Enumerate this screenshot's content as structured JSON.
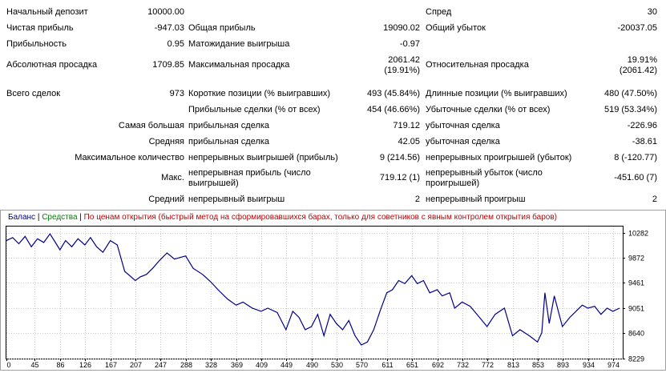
{
  "report": {
    "initial_deposit": {
      "label": "Начальный депозит",
      "value": "10000.00"
    },
    "spread": {
      "label": "Спред",
      "value": "30"
    },
    "net_profit": {
      "label": "Чистая прибыль",
      "value": "-947.03"
    },
    "gross_profit": {
      "label": "Общая прибыль",
      "value": "19090.02"
    },
    "gross_loss": {
      "label": "Общий убыток",
      "value": "-20037.05"
    },
    "profit_factor": {
      "label": "Прибыльность",
      "value": "0.95"
    },
    "expected_payoff": {
      "label": "Матожидание выигрыша",
      "value": "-0.97"
    },
    "abs_drawdown": {
      "label": "Абсолютная просадка",
      "value": "1709.85"
    },
    "max_drawdown": {
      "label": "Максимальная просадка",
      "value": "2061.42",
      "value2": "(19.91%)"
    },
    "rel_drawdown": {
      "label": "Относительная просадка",
      "value": "19.91%",
      "value2": "(2061.42)"
    },
    "total_trades": {
      "label": "Всего сделок",
      "value": "973"
    },
    "short_positions": {
      "label": "Короткие позиции (% выигравших)",
      "value": "493 (45.84%)"
    },
    "long_positions": {
      "label": "Длинные позиции (% выигравших)",
      "value": "480 (47.50%)"
    },
    "profit_trades": {
      "label": "Прибыльные сделки (% от всех)",
      "value": "454 (46.66%)"
    },
    "loss_trades": {
      "label": "Убыточные сделки (% от всех)",
      "value": "519 (53.34%)"
    },
    "largest": {
      "label": "Самая большая",
      "profit_label": "прибыльная сделка",
      "profit_value": "719.12",
      "loss_label": "убыточная сделка",
      "loss_value": "-226.96"
    },
    "average": {
      "label": "Средняя",
      "profit_label": "прибыльная сделка",
      "profit_value": "42.05",
      "loss_label": "убыточная сделка",
      "loss_value": "-38.61"
    },
    "max_consecutive": {
      "label": "Максимальное количество",
      "wins_label": "непрерывных выигрышей (прибыль)",
      "wins_value": "9 (214.56)",
      "losses_label": "непрерывных проигрышей (убыток)",
      "losses_value": "8 (-120.77)"
    },
    "max_consecutive_amount": {
      "label": "Макс.",
      "profit_label": "непрерывная прибыль (число выигрышей)",
      "profit_value": "719.12 (1)",
      "loss_label": "непрерывный убыток (число проигрышей)",
      "loss_value": "-451.60 (7)"
    },
    "average_consecutive": {
      "label": "Средний",
      "wins_label": "непрерывный выигрыш",
      "wins_value": "2",
      "losses_label": "непрерывный проигрыш",
      "losses_value": "2"
    }
  },
  "legend": {
    "balance": "Баланс",
    "sep1": " | ",
    "equity": "Средства",
    "sep2": " | ",
    "model": "По ценам открытия (быстрый метод на сформировавшихся барах, только для советников с явным контролем открытия баров)",
    "colors": {
      "balance": "#00008b",
      "equity": "#008000",
      "model": "#c00000"
    }
  },
  "chart_data": {
    "type": "line",
    "title": "",
    "xlabel": "",
    "ylabel": "",
    "x_ticks": [
      0,
      45,
      86,
      126,
      167,
      207,
      247,
      288,
      328,
      369,
      409,
      449,
      490,
      530,
      570,
      611,
      651,
      692,
      732,
      772,
      813,
      853,
      893,
      934,
      974
    ],
    "y_ticks": [
      10282,
      9872,
      9461,
      9051,
      8640,
      8229
    ],
    "xlim": [
      0,
      990
    ],
    "ylim": [
      8229,
      10380
    ],
    "grid": true,
    "series": [
      {
        "color": "#00008b",
        "x": [
          0,
          10,
          20,
          30,
          40,
          50,
          60,
          70,
          80,
          86,
          95,
          105,
          115,
          126,
          135,
          145,
          155,
          167,
          178,
          190,
          207,
          215,
          225,
          235,
          247,
          258,
          270,
          280,
          288,
          300,
          315,
          328,
          340,
          355,
          369,
          380,
          395,
          409,
          420,
          435,
          449,
          460,
          470,
          480,
          490,
          500,
          510,
          520,
          530,
          540,
          550,
          560,
          570,
          580,
          590,
          600,
          611,
          620,
          630,
          640,
          651,
          660,
          670,
          680,
          692,
          700,
          712,
          720,
          732,
          745,
          760,
          772,
          785,
          800,
          813,
          825,
          840,
          853,
          860,
          865,
          872,
          880,
          893,
          905,
          915,
          925,
          934,
          945,
          955,
          965,
          974,
          985
        ],
        "y": [
          10150,
          10200,
          10100,
          10220,
          10050,
          10180,
          10120,
          10260,
          10100,
          10000,
          10150,
          10050,
          10180,
          10080,
          10200,
          10050,
          9960,
          10150,
          10080,
          9650,
          9500,
          9560,
          9600,
          9700,
          9840,
          9950,
          9850,
          9880,
          9900,
          9700,
          9600,
          9480,
          9350,
          9200,
          9100,
          9150,
          9050,
          9000,
          9050,
          8980,
          8700,
          9000,
          8900,
          8700,
          8750,
          8950,
          8600,
          8950,
          8800,
          8700,
          8850,
          8600,
          8450,
          8500,
          8700,
          9000,
          9300,
          9350,
          9500,
          9450,
          9580,
          9450,
          9500,
          9300,
          9350,
          9250,
          9300,
          9050,
          9150,
          9080,
          8900,
          8750,
          8950,
          9050,
          8600,
          8700,
          8600,
          8500,
          8650,
          9300,
          8800,
          9250,
          8750,
          8900,
          9000,
          9100,
          9050,
          9080,
          8950,
          9050,
          9000,
          9050
        ]
      }
    ]
  }
}
